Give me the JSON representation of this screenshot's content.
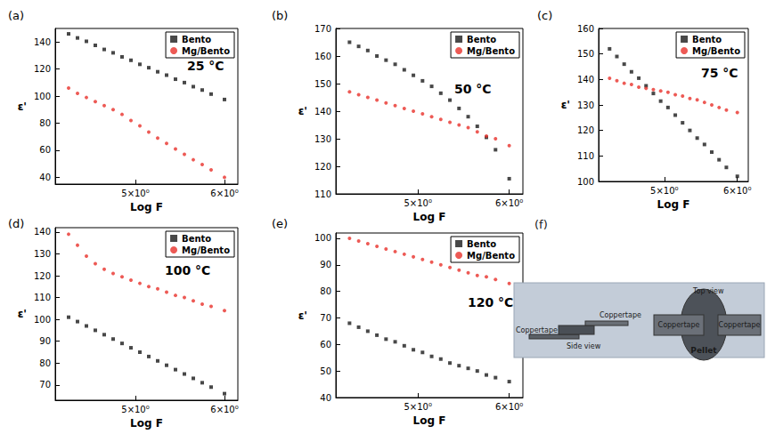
{
  "chart_data": [
    {
      "type": "scatter",
      "panel": "(a)",
      "annotation": "25 °C",
      "x_label": "Log F",
      "y_label": "ε'",
      "x": [
        4.25,
        4.35,
        4.45,
        4.55,
        4.65,
        4.75,
        4.85,
        4.95,
        5.05,
        5.15,
        5.25,
        5.35,
        5.45,
        5.55,
        5.65,
        5.75,
        5.85,
        6.0
      ],
      "series": [
        {
          "name": "Bento",
          "color": "#1a1a1a",
          "marker": "rect",
          "values": [
            146,
            143,
            140.5,
            137.5,
            134.5,
            132,
            129,
            126.5,
            123.5,
            121,
            118,
            115.5,
            112.5,
            110,
            107,
            104.5,
            101.5,
            97.5
          ]
        },
        {
          "name": "Mg/Bento",
          "color": "#e8312a",
          "marker": "circle",
          "values": [
            106,
            102,
            99,
            96,
            93,
            90,
            86.5,
            82,
            78,
            73.5,
            69,
            65,
            61,
            57,
            53,
            49.5,
            45.5,
            40
          ]
        }
      ],
      "xlim": [
        4.1,
        6.15
      ],
      "xticks": [
        {
          "value": 5,
          "label": "5×10⁰"
        },
        {
          "value": 6,
          "label": "6×10⁰"
        }
      ],
      "ylim": [
        35,
        150
      ],
      "yticks": [
        40,
        60,
        80,
        100,
        120,
        140
      ],
      "grid": false,
      "legend": "upper right"
    },
    {
      "type": "scatter",
      "panel": "(b)",
      "annotation": "50 °C",
      "x_label": "Log F",
      "y_label": "ε'",
      "x": [
        4.25,
        4.35,
        4.45,
        4.55,
        4.65,
        4.75,
        4.85,
        4.95,
        5.05,
        5.15,
        5.25,
        5.35,
        5.45,
        5.55,
        5.65,
        5.75,
        5.85,
        6.0
      ],
      "series": [
        {
          "name": "Bento",
          "color": "#1a1a1a",
          "marker": "rect",
          "values": [
            165,
            163.5,
            162,
            160,
            158.5,
            157,
            155,
            153,
            151,
            149,
            146.5,
            144,
            141,
            138,
            134.5,
            130.5,
            126,
            115.5
          ]
        },
        {
          "name": "Mg/Bento",
          "color": "#e8312a",
          "marker": "circle",
          "values": [
            147,
            146,
            145,
            144,
            143,
            142,
            141,
            140,
            139,
            138,
            137,
            136,
            135,
            134,
            132.5,
            131,
            130,
            127.5
          ]
        }
      ],
      "xlim": [
        4.1,
        6.15
      ],
      "xticks": [
        {
          "value": 5,
          "label": "5×10⁰"
        },
        {
          "value": 6,
          "label": "6×10⁰"
        }
      ],
      "ylim": [
        110,
        170
      ],
      "yticks": [
        110,
        120,
        130,
        140,
        150,
        160,
        170
      ],
      "grid": false,
      "legend": "upper right"
    },
    {
      "type": "scatter",
      "panel": "(c)",
      "annotation": "75 °C",
      "x_label": "Log F",
      "y_label": "ε'",
      "x": [
        4.25,
        4.35,
        4.45,
        4.55,
        4.65,
        4.75,
        4.85,
        4.95,
        5.05,
        5.15,
        5.25,
        5.35,
        5.45,
        5.55,
        5.65,
        5.75,
        5.85,
        6.0
      ],
      "series": [
        {
          "name": "Bento",
          "color": "#1a1a1a",
          "marker": "rect",
          "values": [
            152,
            149,
            146,
            143,
            140.5,
            137.5,
            134.5,
            131.5,
            129,
            126,
            123,
            120,
            117,
            114.5,
            111.5,
            108.5,
            105.5,
            102
          ]
        },
        {
          "name": "Mg/Bento",
          "color": "#e8312a",
          "marker": "circle",
          "values": [
            140.5,
            139.5,
            138.5,
            138,
            137,
            136.5,
            136,
            135.5,
            135,
            134,
            133.5,
            132.5,
            132,
            131,
            130,
            129,
            128,
            127
          ]
        }
      ],
      "xlim": [
        4.1,
        6.15
      ],
      "xticks": [
        {
          "value": 5,
          "label": "5×10⁰"
        },
        {
          "value": 6,
          "label": "6×10⁰"
        }
      ],
      "ylim": [
        100,
        160
      ],
      "yticks": [
        100,
        110,
        120,
        130,
        140,
        150,
        160
      ],
      "grid": false,
      "legend": "upper right"
    },
    {
      "type": "scatter",
      "panel": "(d)",
      "annotation": "100 °C",
      "x_label": "Log F",
      "y_label": "ε'",
      "x": [
        4.25,
        4.35,
        4.45,
        4.55,
        4.65,
        4.75,
        4.85,
        4.95,
        5.05,
        5.15,
        5.25,
        5.35,
        5.45,
        5.55,
        5.65,
        5.75,
        5.85,
        6.0
      ],
      "series": [
        {
          "name": "Bento",
          "color": "#1a1a1a",
          "marker": "rect",
          "values": [
            101,
            99,
            97,
            95,
            93,
            91,
            89,
            87,
            85,
            83,
            81,
            79,
            77,
            75,
            73,
            71,
            69,
            66
          ]
        },
        {
          "name": "Mg/Bento",
          "color": "#e8312a",
          "marker": "circle",
          "values": [
            139,
            134,
            129,
            125.5,
            123,
            121,
            119.5,
            118,
            116.5,
            115,
            114,
            112.5,
            111,
            110,
            108.5,
            107,
            106,
            104
          ]
        }
      ],
      "xlim": [
        4.1,
        6.15
      ],
      "xticks": [
        {
          "value": 5,
          "label": "5×10⁰"
        },
        {
          "value": 6,
          "label": "6×10⁰"
        }
      ],
      "ylim": [
        63,
        142
      ],
      "yticks": [
        70,
        80,
        90,
        100,
        110,
        120,
        130,
        140
      ],
      "grid": false,
      "legend": "upper right"
    },
    {
      "type": "scatter",
      "panel": "(e)",
      "annotation": "120 °C",
      "x_label": "Log F",
      "y_label": "ε'",
      "x": [
        4.25,
        4.35,
        4.45,
        4.55,
        4.65,
        4.75,
        4.85,
        4.95,
        5.05,
        5.15,
        5.25,
        5.35,
        5.45,
        5.55,
        5.65,
        5.75,
        5.85,
        6.0
      ],
      "series": [
        {
          "name": "Bento",
          "color": "#1a1a1a",
          "marker": "rect",
          "values": [
            68,
            66.5,
            65,
            63.5,
            62,
            61,
            59.5,
            58,
            57,
            55.5,
            54.5,
            53,
            52,
            51,
            50,
            48.5,
            47.5,
            46
          ]
        },
        {
          "name": "Mg/Bento",
          "color": "#e8312a",
          "marker": "circle",
          "values": [
            100,
            99,
            98,
            97,
            96,
            95,
            94,
            93,
            92,
            91,
            90,
            89,
            88,
            87,
            86,
            85.5,
            84.5,
            83
          ]
        }
      ],
      "xlim": [
        4.1,
        6.15
      ],
      "xticks": [
        {
          "value": 5,
          "label": "5×10⁰"
        },
        {
          "value": 6,
          "label": "6×10⁰"
        }
      ],
      "ylim": [
        40,
        102
      ],
      "yticks": [
        40,
        50,
        60,
        70,
        80,
        90,
        100
      ],
      "grid": false,
      "legend": "upper right"
    }
  ],
  "diagram": {
    "panel": "(f)",
    "side_view": {
      "caption": "Side view",
      "upper_tape": "Coppertape",
      "lower_tape": "Coppertape"
    },
    "top_view": {
      "caption": "Top view",
      "left_tape": "Coppertape",
      "right_tape": "Coppertape",
      "pellet": "Pellet"
    }
  }
}
